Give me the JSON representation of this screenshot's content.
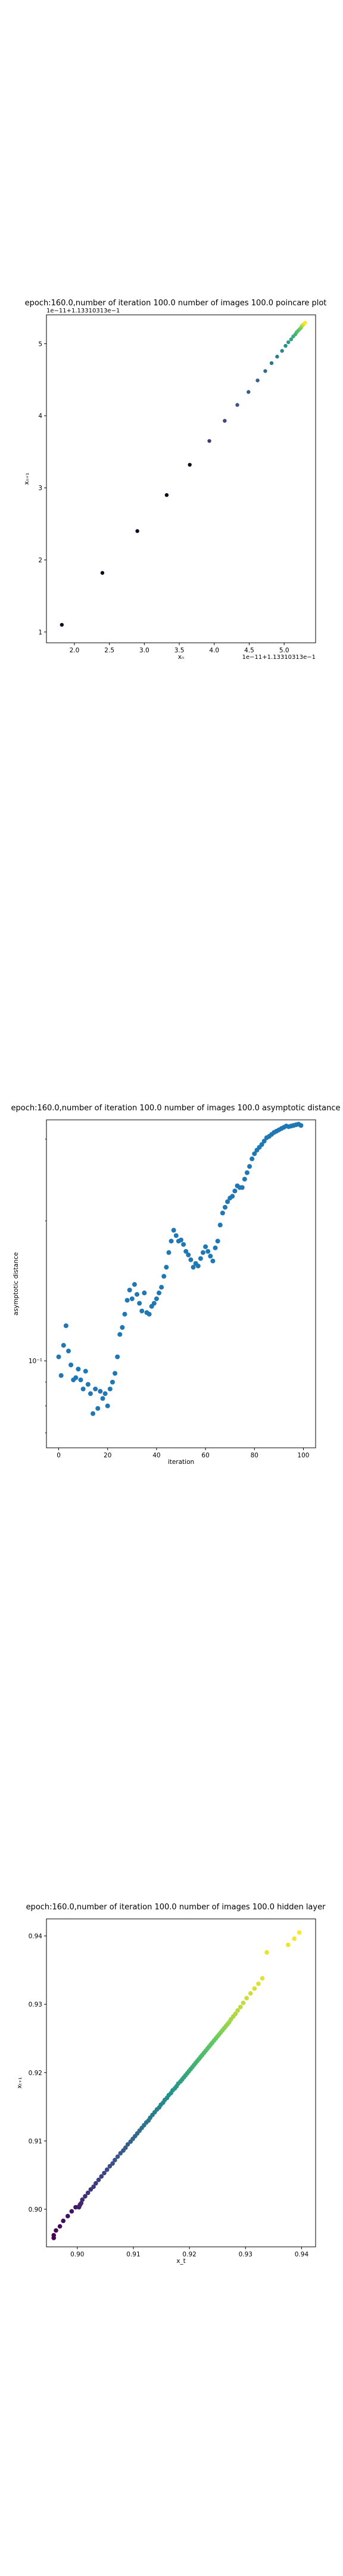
{
  "chart_data": [
    {
      "type": "scatter",
      "title": "epoch:160.0,number of iteration 100.0 number of images 100.0 poincare plot",
      "xlabel": "xₙ",
      "ylabel": "xₙ₊₁",
      "x_offset_text": "1e−11+1.13310313e−1",
      "y_offset_text": "1e−11+1.13310313e−1",
      "xticks": [
        "2.0",
        "2.5",
        "3.0",
        "3.5",
        "4.0",
        "4.5",
        "5.0"
      ],
      "yticks": [
        "1",
        "2",
        "3",
        "4",
        "5"
      ],
      "xlim": [
        1.6,
        5.45
      ],
      "ylim": [
        0.85,
        5.4
      ],
      "colormap": "viridis",
      "grid": false,
      "points": [
        [
          1.82,
          1.1
        ],
        [
          2.4,
          1.82
        ],
        [
          2.9,
          2.4
        ],
        [
          3.32,
          2.9
        ],
        [
          3.65,
          3.32
        ],
        [
          3.93,
          3.65
        ],
        [
          4.15,
          3.93
        ],
        [
          4.33,
          4.15
        ],
        [
          4.49,
          4.33
        ],
        [
          4.62,
          4.49
        ],
        [
          4.73,
          4.62
        ],
        [
          4.82,
          4.73
        ],
        [
          4.9,
          4.82
        ],
        [
          4.97,
          4.9
        ],
        [
          5.02,
          4.97
        ],
        [
          5.06,
          5.02
        ],
        [
          5.1,
          5.06
        ],
        [
          5.13,
          5.1
        ],
        [
          5.16,
          5.13
        ],
        [
          5.18,
          5.16
        ],
        [
          5.2,
          5.18
        ],
        [
          5.22,
          5.2
        ],
        [
          5.24,
          5.22
        ],
        [
          5.25,
          5.24
        ],
        [
          5.26,
          5.25
        ],
        [
          5.27,
          5.26
        ],
        [
          5.28,
          5.27
        ],
        [
          5.29,
          5.28
        ],
        [
          5.3,
          5.29
        ]
      ]
    },
    {
      "type": "scatter",
      "title": "epoch:160.0,number of iteration 100.0  number of images 100.0 asymptotic distance",
      "xlabel": "iteration",
      "ylabel": "asymptotic distance",
      "yscale": "log",
      "xlim": [
        -5,
        105
      ],
      "ylim": [
        0.065,
        0.33
      ],
      "xticks": [
        "0",
        "20",
        "40",
        "60",
        "80",
        "100"
      ],
      "yticks": [
        "10⁻¹"
      ],
      "ytick_values": [
        0.1
      ],
      "color": "#1f77b4",
      "grid": false,
      "x": [
        0,
        1,
        2,
        3,
        4,
        5,
        6,
        7,
        8,
        9,
        10,
        11,
        12,
        13,
        14,
        15,
        16,
        17,
        18,
        19,
        20,
        21,
        22,
        23,
        24,
        25,
        26,
        27,
        28,
        29,
        30,
        31,
        32,
        33,
        34,
        35,
        36,
        37,
        38,
        39,
        40,
        41,
        42,
        43,
        44,
        45,
        46,
        47,
        48,
        49,
        50,
        51,
        52,
        53,
        54,
        55,
        56,
        57,
        58,
        59,
        60,
        61,
        62,
        63,
        64,
        65,
        66,
        67,
        68,
        69,
        70,
        71,
        72,
        73,
        74,
        75,
        76,
        77,
        78,
        79,
        80,
        81,
        82,
        83,
        84,
        85,
        86,
        87,
        88,
        89,
        90,
        91,
        92,
        93,
        94,
        95,
        96,
        97,
        98,
        99
      ],
      "y": [
        0.102,
        0.093,
        0.108,
        0.119,
        0.105,
        0.098,
        0.091,
        0.092,
        0.096,
        0.091,
        0.087,
        0.095,
        0.089,
        0.085,
        0.077,
        0.087,
        0.079,
        0.086,
        0.083,
        0.085,
        0.08,
        0.087,
        0.09,
        0.094,
        0.102,
        0.114,
        0.118,
        0.126,
        0.135,
        0.142,
        0.136,
        0.146,
        0.139,
        0.133,
        0.128,
        0.14,
        0.127,
        0.126,
        0.131,
        0.133,
        0.136,
        0.14,
        0.144,
        0.152,
        0.159,
        0.171,
        0.181,
        0.191,
        0.186,
        0.181,
        0.182,
        0.178,
        0.172,
        0.169,
        0.165,
        0.159,
        0.162,
        0.16,
        0.166,
        0.171,
        0.176,
        0.172,
        0.168,
        0.164,
        0.175,
        0.181,
        0.196,
        0.208,
        0.214,
        0.22,
        0.224,
        0.226,
        0.232,
        0.238,
        0.236,
        0.236,
        0.246,
        0.254,
        0.262,
        0.272,
        0.279,
        0.284,
        0.288,
        0.292,
        0.297,
        0.302,
        0.304,
        0.307,
        0.31,
        0.312,
        0.314,
        0.316,
        0.318,
        0.32,
        0.319,
        0.32,
        0.321,
        0.322,
        0.323,
        0.321
      ]
    },
    {
      "type": "scatter",
      "title": "epoch:160.0,number of iteration 100.0  number of images 100.0 hidden layer",
      "xlabel": "x_t",
      "ylabel": "xₜ₊₁",
      "xlim": [
        0.8945,
        0.9425
      ],
      "ylim": [
        0.8945,
        0.9425
      ],
      "xticks": [
        "0.90",
        "0.91",
        "0.92",
        "0.93",
        "0.94"
      ],
      "yticks": [
        "0.90",
        "0.91",
        "0.92",
        "0.93",
        "0.94"
      ],
      "tick_values": [
        0.9,
        0.91,
        0.92,
        0.93,
        0.94
      ],
      "colormap": "viridis",
      "grid": false,
      "x": [
        0.8958,
        0.8958,
        0.8962,
        0.8969,
        0.8975,
        0.8983,
        0.899,
        0.8997,
        0.9003,
        0.9003,
        0.9004,
        0.9005,
        0.9007,
        0.9009,
        0.9014,
        0.9019,
        0.9024,
        0.9029,
        0.9033,
        0.9038,
        0.9043,
        0.9048,
        0.9053,
        0.9058,
        0.9063,
        0.9067,
        0.9072,
        0.9077,
        0.9082,
        0.9086,
        0.909,
        0.9095,
        0.9099,
        0.9103,
        0.9107,
        0.9111,
        0.9115,
        0.9119,
        0.9123,
        0.9127,
        0.913,
        0.9134,
        0.9138,
        0.9142,
        0.9146,
        0.9149,
        0.9153,
        0.9156,
        0.916,
        0.9163,
        0.9167,
        0.917,
        0.9174,
        0.9177,
        0.918,
        0.9184,
        0.9187,
        0.919,
        0.9193,
        0.9196,
        0.9199,
        0.9202,
        0.9205,
        0.9208,
        0.9211,
        0.9214,
        0.9217,
        0.922,
        0.9223,
        0.9226,
        0.9229,
        0.9232,
        0.9235,
        0.9238,
        0.9241,
        0.9244,
        0.9247,
        0.925,
        0.9253,
        0.9256,
        0.9259,
        0.9262,
        0.9265,
        0.9268,
        0.9271,
        0.9274,
        0.9278,
        0.9282,
        0.9286,
        0.9291,
        0.9296,
        0.9302,
        0.9309,
        0.9316,
        0.9323,
        0.933,
        0.9338,
        0.9376,
        0.9387,
        0.9396
      ],
      "y": [
        0.8958,
        0.8962,
        0.8969,
        0.8975,
        0.8983,
        0.899,
        0.8997,
        0.9003,
        0.9003,
        0.9004,
        0.9005,
        0.9007,
        0.9009,
        0.9014,
        0.9019,
        0.9024,
        0.9029,
        0.9033,
        0.9038,
        0.9043,
        0.9048,
        0.9053,
        0.9058,
        0.9063,
        0.9067,
        0.9072,
        0.9077,
        0.9082,
        0.9086,
        0.909,
        0.9095,
        0.9099,
        0.9103,
        0.9107,
        0.9111,
        0.9115,
        0.9119,
        0.9123,
        0.9127,
        0.913,
        0.9134,
        0.9138,
        0.9142,
        0.9146,
        0.9149,
        0.9153,
        0.9156,
        0.916,
        0.9163,
        0.9167,
        0.917,
        0.9174,
        0.9177,
        0.918,
        0.9184,
        0.9187,
        0.919,
        0.9193,
        0.9196,
        0.9199,
        0.9202,
        0.9205,
        0.9208,
        0.9211,
        0.9214,
        0.9217,
        0.922,
        0.9223,
        0.9226,
        0.9229,
        0.9232,
        0.9235,
        0.9238,
        0.9241,
        0.9244,
        0.9247,
        0.925,
        0.9253,
        0.9256,
        0.9259,
        0.9262,
        0.9265,
        0.9268,
        0.9271,
        0.9274,
        0.9278,
        0.9282,
        0.9286,
        0.9291,
        0.9296,
        0.9302,
        0.9309,
        0.9316,
        0.9323,
        0.933,
        0.9338,
        0.9376,
        0.9387,
        0.9396,
        0.9405
      ]
    }
  ]
}
